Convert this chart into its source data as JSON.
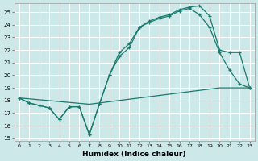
{
  "xlabel": "Humidex (Indice chaleur)",
  "bg_color": "#cce8e8",
  "line_color": "#1a7a6e",
  "grid_color": "#ffffff",
  "xlim": [
    -0.5,
    23.5
  ],
  "ylim": [
    14.8,
    25.7
  ],
  "yticks": [
    15,
    16,
    17,
    18,
    19,
    20,
    21,
    22,
    23,
    24,
    25
  ],
  "xticks": [
    0,
    1,
    2,
    3,
    4,
    5,
    6,
    7,
    8,
    9,
    10,
    11,
    12,
    13,
    14,
    15,
    16,
    17,
    18,
    19,
    20,
    21,
    22,
    23
  ],
  "line1_x": [
    0,
    1,
    2,
    3,
    4,
    5,
    6,
    7,
    8,
    9,
    10,
    11,
    12,
    13,
    14,
    15,
    16,
    17,
    18,
    19,
    20,
    21,
    22,
    23
  ],
  "line1_y": [
    18.2,
    17.8,
    17.6,
    17.4,
    16.5,
    17.5,
    17.5,
    15.3,
    17.7,
    20.0,
    21.5,
    22.2,
    23.8,
    24.2,
    24.5,
    24.7,
    25.1,
    25.3,
    24.8,
    23.8,
    21.8,
    20.4,
    19.3,
    19.0
  ],
  "line2_x": [
    0,
    1,
    2,
    3,
    4,
    5,
    6,
    7,
    8,
    9,
    10,
    11,
    12,
    13,
    14,
    15,
    16,
    17,
    18,
    19,
    20,
    21,
    22,
    23
  ],
  "line2_y": [
    18.2,
    17.8,
    17.6,
    17.4,
    16.5,
    17.5,
    17.5,
    15.3,
    17.7,
    20.0,
    21.8,
    22.5,
    23.8,
    24.3,
    24.6,
    24.8,
    25.2,
    25.4,
    25.5,
    24.7,
    22.0,
    21.8,
    21.8,
    19.0
  ],
  "line3_x": [
    0,
    7,
    8,
    9,
    10,
    11,
    12,
    13,
    14,
    15,
    16,
    17,
    18,
    19,
    20,
    21,
    22,
    23
  ],
  "line3_y": [
    18.2,
    17.7,
    17.8,
    17.9,
    18.0,
    18.1,
    18.2,
    18.3,
    18.4,
    18.5,
    18.6,
    18.7,
    18.8,
    18.9,
    19.0,
    19.0,
    19.0,
    19.0
  ]
}
